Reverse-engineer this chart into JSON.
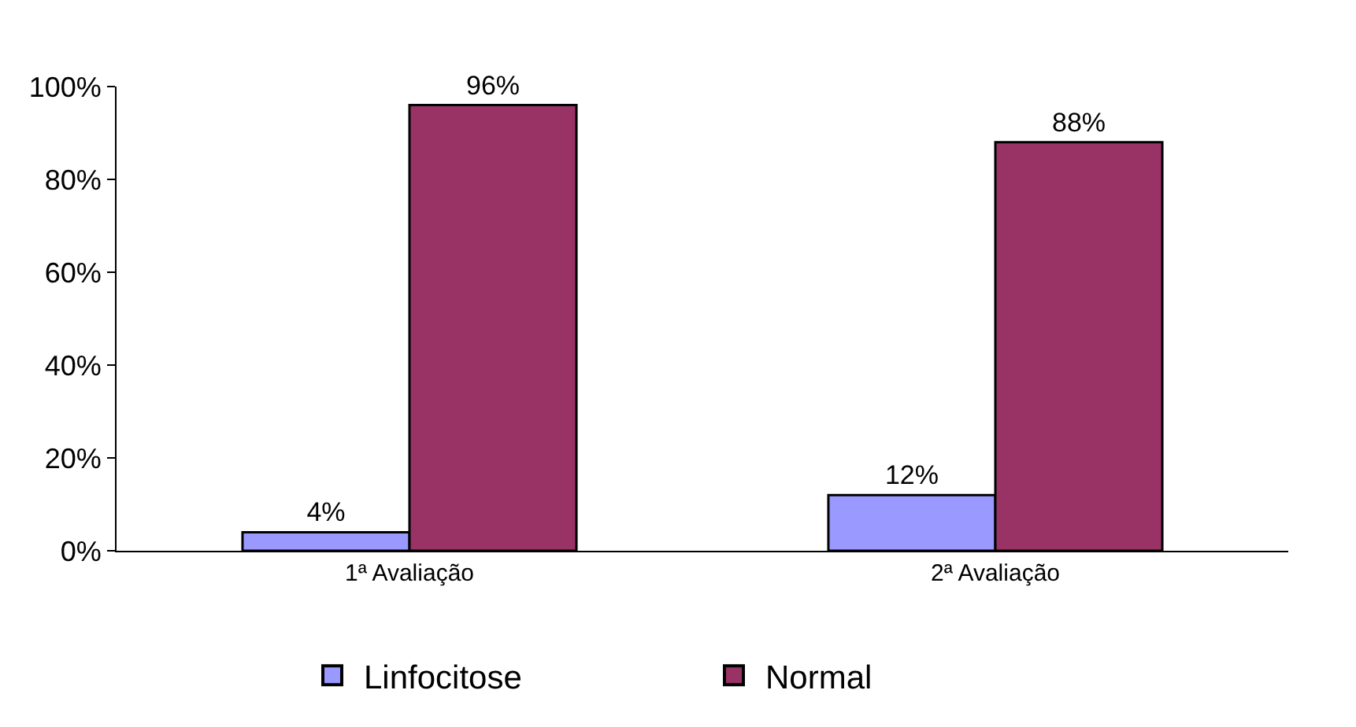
{
  "chart_data": {
    "type": "bar",
    "categories": [
      "1ª Avaliação",
      "2ª Avaliação"
    ],
    "series": [
      {
        "name": "Linfocitose",
        "color": "#9999ff",
        "values": [
          4,
          12
        ],
        "value_labels": [
          "4%",
          "12%"
        ]
      },
      {
        "name": "Normal",
        "color": "#993366",
        "values": [
          96,
          88
        ],
        "value_labels": [
          "96%",
          "88%"
        ]
      }
    ],
    "ylim": [
      0,
      100
    ],
    "yticks": [
      {
        "value": 0,
        "label": "0%"
      },
      {
        "value": 20,
        "label": "20%"
      },
      {
        "value": 40,
        "label": "40%"
      },
      {
        "value": 60,
        "label": "60%"
      },
      {
        "value": 80,
        "label": "80%"
      },
      {
        "value": 100,
        "label": "100%"
      }
    ],
    "grid": false,
    "legend": "bottom"
  }
}
